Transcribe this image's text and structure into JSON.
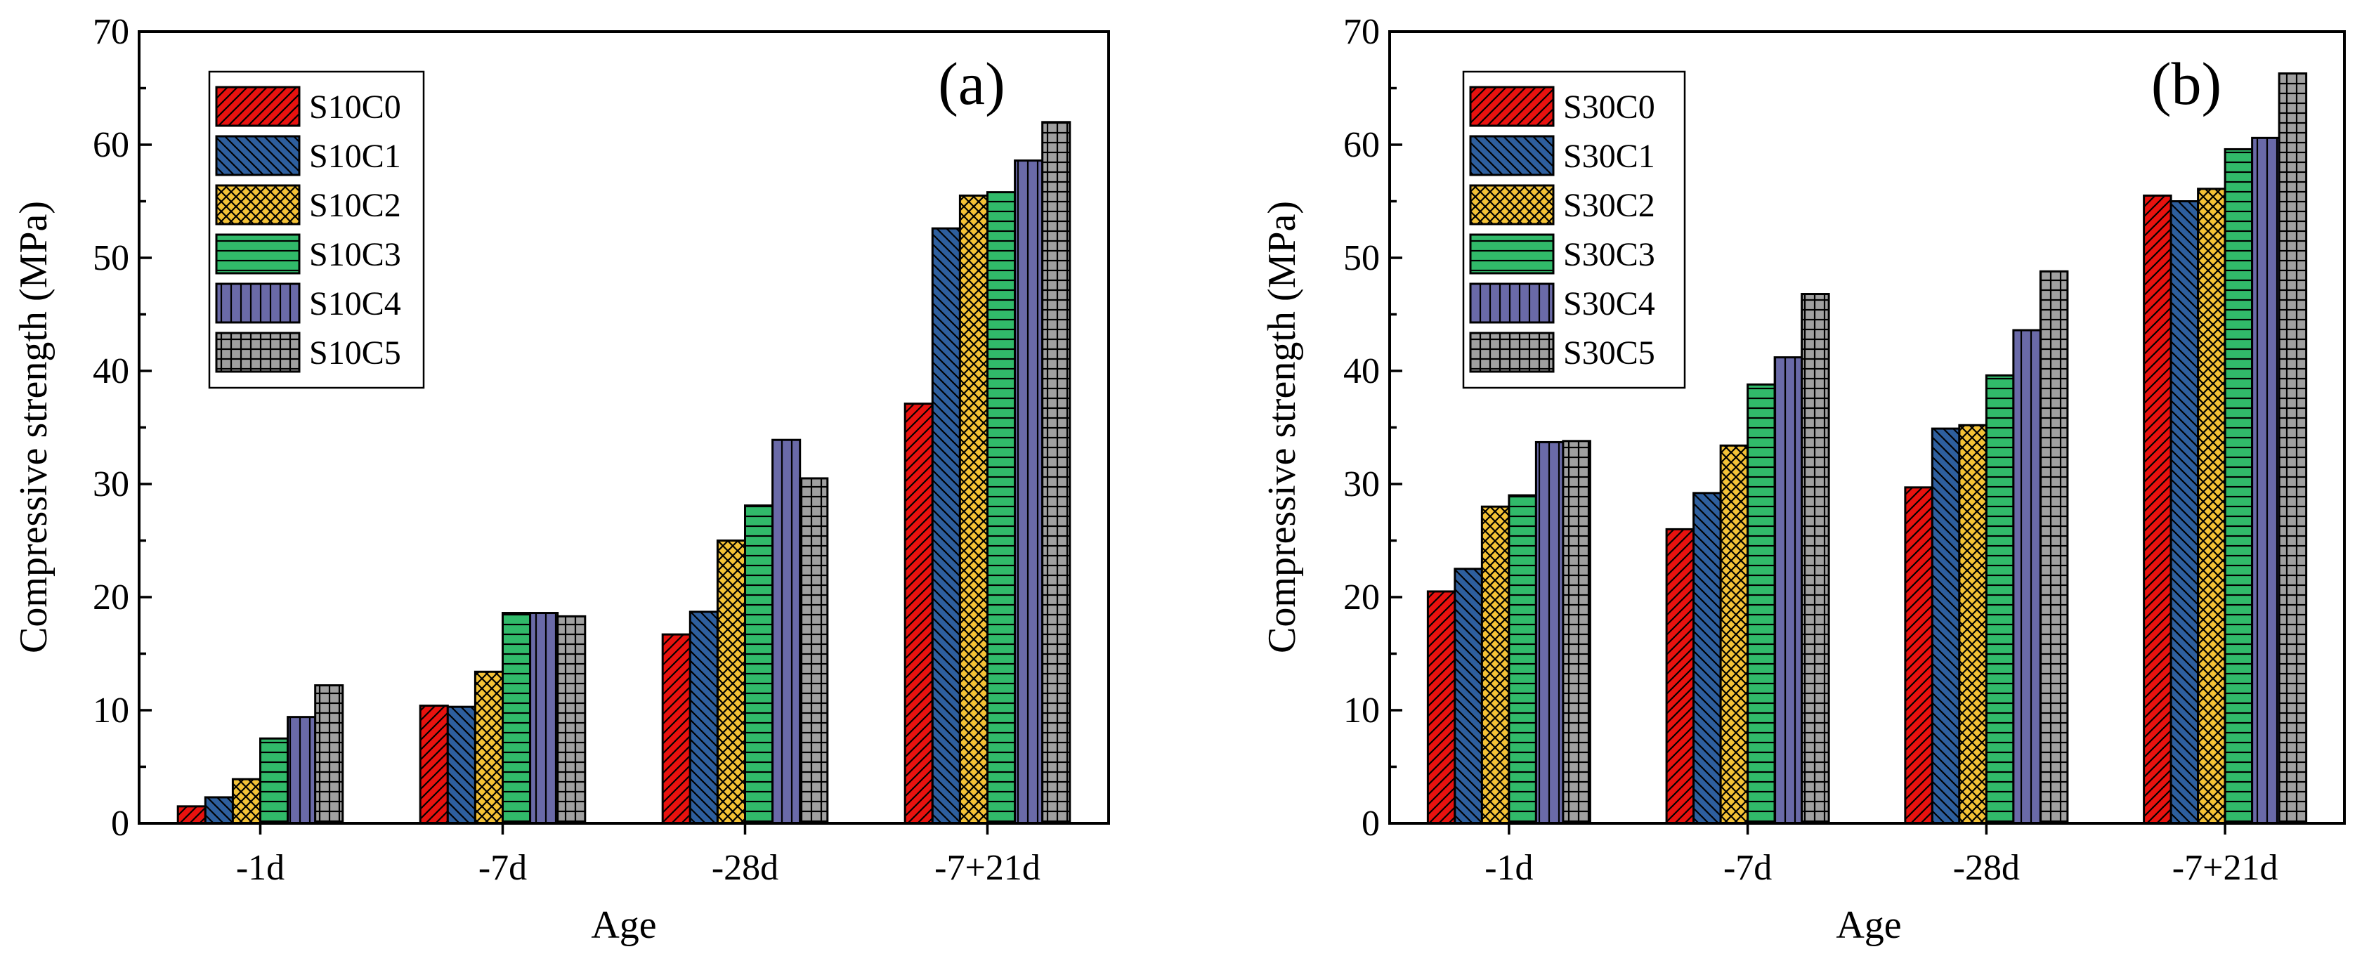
{
  "chart_data": [
    {
      "type": "bar",
      "panel_label": "(a)",
      "categories": [
        "-1d",
        "-7d",
        "-28d",
        "-7+21d"
      ],
      "series": [
        {
          "name": "S10C0",
          "color": "#e8120f",
          "pattern": "diag-up",
          "values": [
            1.5,
            10.4,
            16.7,
            37.1
          ]
        },
        {
          "name": "S10C1",
          "color": "#2e5f9e",
          "pattern": "diag-down",
          "values": [
            2.3,
            10.3,
            18.7,
            52.6
          ]
        },
        {
          "name": "S10C2",
          "color": "#f4c236",
          "pattern": "cross-diag",
          "values": [
            3.9,
            13.4,
            25.0,
            55.5
          ]
        },
        {
          "name": "S10C3",
          "color": "#31ba6a",
          "pattern": "horizontal",
          "values": [
            7.5,
            18.6,
            28.1,
            55.8
          ]
        },
        {
          "name": "S10C4",
          "color": "#6a6aa8",
          "pattern": "vertical",
          "values": [
            9.4,
            18.6,
            33.9,
            58.6
          ]
        },
        {
          "name": "S10C5",
          "color": "#a0a0a0",
          "pattern": "grid",
          "values": [
            12.2,
            18.3,
            30.5,
            62.0
          ]
        }
      ],
      "xlabel": "Age",
      "ylabel": "Compressive strength (MPa)",
      "ylim": [
        0,
        70
      ],
      "yticks": [
        "0",
        "10",
        "20",
        "30",
        "40",
        "50",
        "60",
        "70"
      ],
      "legend_position": "top-left"
    },
    {
      "type": "bar",
      "panel_label": "(b)",
      "categories": [
        "-1d",
        "-7d",
        "-28d",
        "-7+21d"
      ],
      "series": [
        {
          "name": "S30C0",
          "color": "#e8120f",
          "pattern": "diag-up",
          "values": [
            20.5,
            26.0,
            29.7,
            55.5
          ]
        },
        {
          "name": "S30C1",
          "color": "#2e5f9e",
          "pattern": "diag-down",
          "values": [
            22.5,
            29.2,
            34.9,
            55.0
          ]
        },
        {
          "name": "S30C2",
          "color": "#f4c236",
          "pattern": "cross-diag",
          "values": [
            28.0,
            33.4,
            35.2,
            56.1
          ]
        },
        {
          "name": "S30C3",
          "color": "#31ba6a",
          "pattern": "horizontal",
          "values": [
            29.0,
            38.8,
            39.6,
            59.6
          ]
        },
        {
          "name": "S30C4",
          "color": "#6a6aa8",
          "pattern": "vertical",
          "values": [
            33.7,
            41.2,
            43.6,
            60.6
          ]
        },
        {
          "name": "S30C5",
          "color": "#a0a0a0",
          "pattern": "grid",
          "values": [
            33.8,
            46.8,
            48.8,
            66.3
          ]
        }
      ],
      "xlabel": "Age",
      "ylabel": "Compressive strength (MPa)",
      "ylim": [
        0,
        70
      ],
      "yticks": [
        "0",
        "10",
        "20",
        "30",
        "40",
        "50",
        "60",
        "70"
      ],
      "legend_position": "top-left"
    }
  ]
}
